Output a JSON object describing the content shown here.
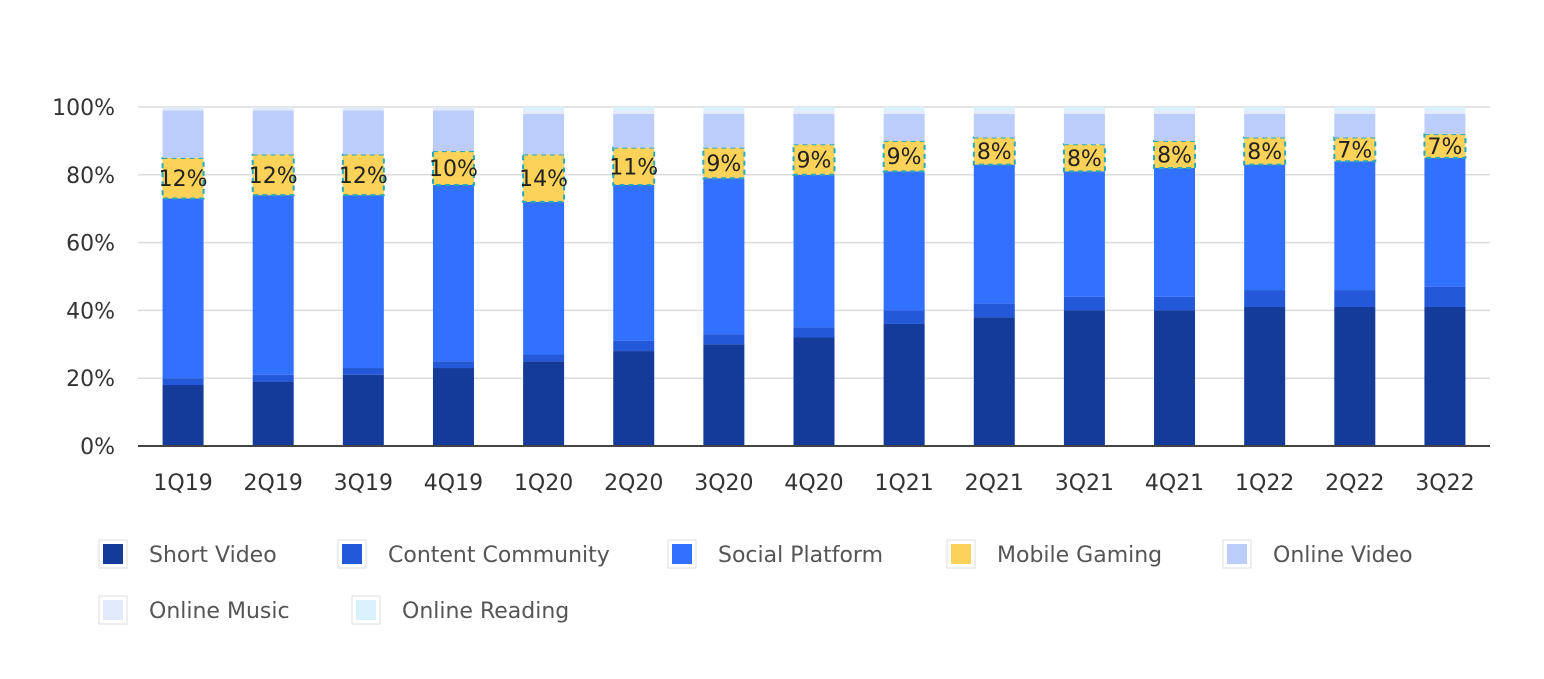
{
  "chart_data": {
    "type": "bar",
    "stacked": true,
    "normalized": true,
    "categories": [
      "1Q19",
      "2Q19",
      "3Q19",
      "4Q19",
      "1Q20",
      "2Q20",
      "3Q20",
      "4Q20",
      "1Q21",
      "2Q21",
      "3Q21",
      "4Q21",
      "1Q22",
      "2Q22",
      "3Q22"
    ],
    "series": [
      {
        "name": "Short Video",
        "color": "#143a9a",
        "values": [
          18,
          19,
          21,
          23,
          25,
          28,
          30,
          32,
          36,
          38,
          40,
          40,
          41,
          41,
          41
        ]
      },
      {
        "name": "Content Community",
        "color": "#2358d8",
        "values": [
          2,
          2,
          2,
          2,
          2,
          3,
          3,
          3,
          4,
          4,
          4,
          4,
          5,
          5,
          6
        ]
      },
      {
        "name": "Social Platform",
        "color": "#3270ff",
        "values": [
          53,
          53,
          51,
          52,
          45,
          46,
          46,
          45,
          41,
          41,
          37,
          38,
          37,
          38,
          38
        ]
      },
      {
        "name": "Mobile Gaming",
        "color": "#fcd258",
        "values": [
          12,
          12,
          12,
          10,
          14,
          11,
          9,
          9,
          9,
          8,
          8,
          8,
          8,
          7,
          7
        ]
      },
      {
        "name": "Online Video",
        "color": "#bccdfb",
        "values": [
          14,
          13,
          13,
          12,
          12,
          10,
          10,
          9,
          8,
          7,
          9,
          8,
          7,
          7,
          6
        ]
      },
      {
        "name": "Online Music",
        "color": "#e2eafd",
        "values": [
          1,
          1,
          1,
          1,
          1,
          1,
          1,
          1,
          1,
          1,
          1,
          1,
          1,
          1,
          1
        ]
      },
      {
        "name": "Online Reading",
        "color": "#d9f1fd",
        "values": [
          0,
          0,
          0,
          0,
          1,
          1,
          1,
          1,
          1,
          1,
          1,
          1,
          1,
          1,
          1
        ]
      }
    ],
    "data_labels": [
      "12%",
      "12%",
      "12%",
      "10%",
      "14%",
      "11%",
      "9%",
      "9%",
      "9%",
      "8%",
      "8%",
      "8%",
      "8%",
      "7%",
      "7%"
    ],
    "highlighted_series": "Mobile Gaming",
    "y_ticks": [
      "0%",
      "20%",
      "40%",
      "60%",
      "80%",
      "100%"
    ],
    "ylim": [
      0,
      100
    ],
    "grid": true,
    "legend_position": "bottom-left",
    "title": "",
    "xlabel": "",
    "ylabel": ""
  }
}
